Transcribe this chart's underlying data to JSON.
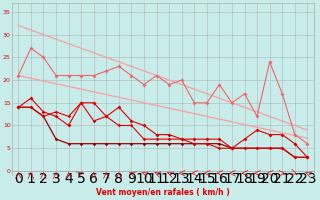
{
  "x": [
    0,
    1,
    2,
    3,
    4,
    5,
    6,
    7,
    8,
    9,
    10,
    11,
    12,
    13,
    14,
    15,
    16,
    17,
    18,
    19,
    20,
    21,
    22,
    23
  ],
  "diag_top": [
    32,
    31,
    30,
    29,
    28,
    27,
    26,
    25,
    24,
    23,
    22,
    21,
    20,
    19,
    18,
    17,
    16,
    15,
    14,
    13,
    12,
    11,
    10,
    9
  ],
  "diag_bot": [
    21,
    20.4,
    19.8,
    19.2,
    18.6,
    18.0,
    17.4,
    16.8,
    16.2,
    15.6,
    15.0,
    14.4,
    13.8,
    13.2,
    12.6,
    12.0,
    11.4,
    10.8,
    10.2,
    9.6,
    9.0,
    8.4,
    7.8,
    7.2
  ],
  "line_pink": [
    21,
    27,
    25,
    21,
    21,
    21,
    21,
    22,
    23,
    21,
    19,
    21,
    19,
    20,
    15,
    15,
    19,
    15,
    17,
    12,
    24,
    17,
    8,
    6
  ],
  "line_red1": [
    14,
    16,
    13,
    12,
    10,
    15,
    15,
    12,
    14,
    11,
    10,
    8,
    8,
    7,
    7,
    7,
    7,
    5,
    7,
    9,
    8,
    8,
    6,
    3
  ],
  "line_red2": [
    14,
    14,
    12,
    7,
    6,
    6,
    6,
    6,
    6,
    6,
    6,
    6,
    6,
    6,
    6,
    6,
    6,
    5,
    5,
    5,
    5,
    5,
    3,
    3
  ],
  "line_red3": [
    14,
    14,
    12,
    13,
    12,
    15,
    11,
    12,
    10,
    10,
    7,
    7,
    7,
    7,
    6,
    6,
    5,
    5,
    5,
    5,
    5,
    5,
    3,
    3
  ],
  "bg_color": "#c8ecea",
  "grid_color": "#aaaaaa",
  "col_light_pink": "#f5a0a0",
  "col_pink": "#ee6666",
  "col_red": "#dd0000",
  "col_darkred": "#990000",
  "xlabel": "Vent moyen/en rafales ( km/h )",
  "yticks": [
    0,
    5,
    10,
    15,
    20,
    25,
    30,
    35
  ],
  "xlim": [
    -0.5,
    23.5
  ],
  "ylim": [
    -1,
    37
  ]
}
